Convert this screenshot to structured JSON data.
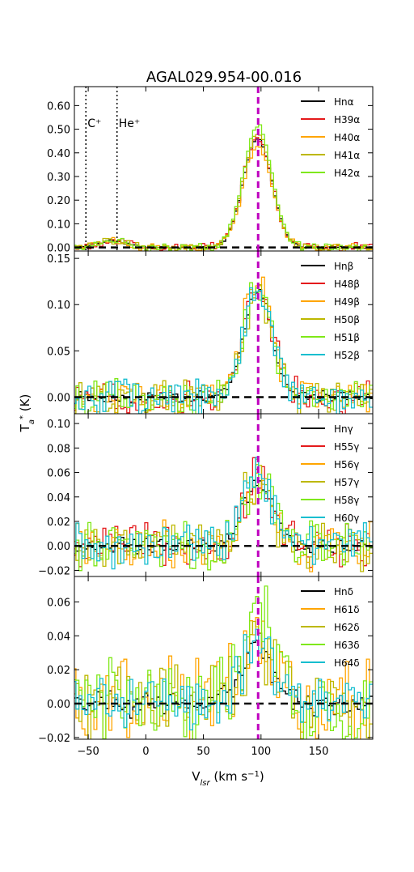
{
  "figure": {
    "title": "AGAL029.954-00.016",
    "xlabel": "V",
    "xlabel_sub": "lsr",
    "xlabel_units": " (km s",
    "xlabel_sup": "−1",
    "xlabel_close": ")",
    "ylabel": "T",
    "ylabel_sub": "a",
    "ylabel_sup": "*",
    "ylabel_units": " (K)"
  },
  "chart_data": {
    "type": "line",
    "style": "step",
    "xlim": [
      -62,
      197
    ],
    "x_ticks": [
      -50,
      0,
      50,
      100,
      150
    ],
    "x_tick_labels": [
      "−50",
      "0",
      "50",
      "100",
      "150"
    ],
    "reference_velocity": 97.5,
    "reference_color": "#bf00bf",
    "annotations": [
      {
        "text": "C⁺",
        "x": -52,
        "color": "#000000"
      },
      {
        "text": "He⁺",
        "x": -25,
        "color": "#000000"
      }
    ],
    "line_center": 97,
    "line_width": 12.5,
    "grid": false,
    "legend_placement": "upper-right",
    "panels": [
      {
        "id": "alpha",
        "ylim": [
          -0.015,
          0.68
        ],
        "y_ticks": [
          0.0,
          0.1,
          0.2,
          0.3,
          0.4,
          0.5,
          0.6
        ],
        "y_tick_labels": [
          "0.00",
          "0.10",
          "0.20",
          "0.30",
          "0.40",
          "0.50",
          "0.60"
        ],
        "peak": 0.46,
        "noise": 0.012,
        "shows_carbon_helium": true,
        "series": [
          {
            "name": "Hnα",
            "color": "#000000",
            "amp": 0.46,
            "noise": 0.004
          },
          {
            "name": "H39α",
            "color": "#e41a1c",
            "amp": 0.47,
            "noise": 0.014
          },
          {
            "name": "H40α",
            "color": "#ffa500",
            "amp": 0.43,
            "noise": 0.012
          },
          {
            "name": "H41α",
            "color": "#bdb800",
            "amp": 0.48,
            "noise": 0.012
          },
          {
            "name": "H42α",
            "color": "#7fe817",
            "amp": 0.51,
            "noise": 0.013
          }
        ]
      },
      {
        "id": "beta",
        "ylim": [
          -0.018,
          0.158
        ],
        "y_ticks": [
          0.0,
          0.05,
          0.1,
          0.15
        ],
        "y_tick_labels": [
          "0.00",
          "0.05",
          "0.10",
          "0.15"
        ],
        "shows_carbon_helium": false,
        "series": [
          {
            "name": "Hnβ",
            "color": "#000000",
            "amp": 0.115,
            "noise": 0.005
          },
          {
            "name": "H48β",
            "color": "#e41a1c",
            "amp": 0.12,
            "noise": 0.014
          },
          {
            "name": "H49β",
            "color": "#ffa500",
            "amp": 0.125,
            "noise": 0.015
          },
          {
            "name": "H50β",
            "color": "#bdb800",
            "amp": 0.11,
            "noise": 0.014
          },
          {
            "name": "H51β",
            "color": "#7fe817",
            "amp": 0.12,
            "noise": 0.014
          },
          {
            "name": "H52β",
            "color": "#17becf",
            "amp": 0.115,
            "noise": 0.014
          }
        ]
      },
      {
        "id": "gamma",
        "ylim": [
          -0.025,
          0.108
        ],
        "y_ticks": [
          -0.02,
          0.0,
          0.02,
          0.04,
          0.06,
          0.08,
          0.1
        ],
        "y_tick_labels": [
          "−0.02",
          "0.00",
          "0.02",
          "0.04",
          "0.06",
          "0.08",
          "0.10"
        ],
        "shows_carbon_helium": false,
        "series": [
          {
            "name": "Hnγ",
            "color": "#000000",
            "amp": 0.052,
            "noise": 0.005
          },
          {
            "name": "H55γ",
            "color": "#e41a1c",
            "amp": 0.055,
            "noise": 0.014
          },
          {
            "name": "H56γ",
            "color": "#ffa500",
            "amp": 0.05,
            "noise": 0.015
          },
          {
            "name": "H57γ",
            "color": "#bdb800",
            "amp": 0.055,
            "noise": 0.016
          },
          {
            "name": "H58γ",
            "color": "#7fe817",
            "amp": 0.058,
            "noise": 0.016
          },
          {
            "name": "H60γ",
            "color": "#17becf",
            "amp": 0.06,
            "noise": 0.014
          }
        ]
      },
      {
        "id": "delta",
        "ylim": [
          -0.021,
          0.075
        ],
        "y_ticks": [
          -0.02,
          0.0,
          0.02,
          0.04,
          0.06
        ],
        "y_tick_labels": [
          "−0.02",
          "0.00",
          "0.02",
          "0.04",
          "0.06"
        ],
        "shows_carbon_helium": false,
        "series": [
          {
            "name": "Hnδ",
            "color": "#000000",
            "amp": 0.035,
            "noise": 0.006
          },
          {
            "name": "H61δ",
            "color": "#ffa500",
            "amp": 0.04,
            "noise": 0.022
          },
          {
            "name": "H62δ",
            "color": "#bdb800",
            "amp": 0.035,
            "noise": 0.018
          },
          {
            "name": "H63δ",
            "color": "#7fe817",
            "amp": 0.05,
            "noise": 0.02
          },
          {
            "name": "H64δ",
            "color": "#17becf",
            "amp": 0.035,
            "noise": 0.012
          }
        ]
      }
    ]
  }
}
